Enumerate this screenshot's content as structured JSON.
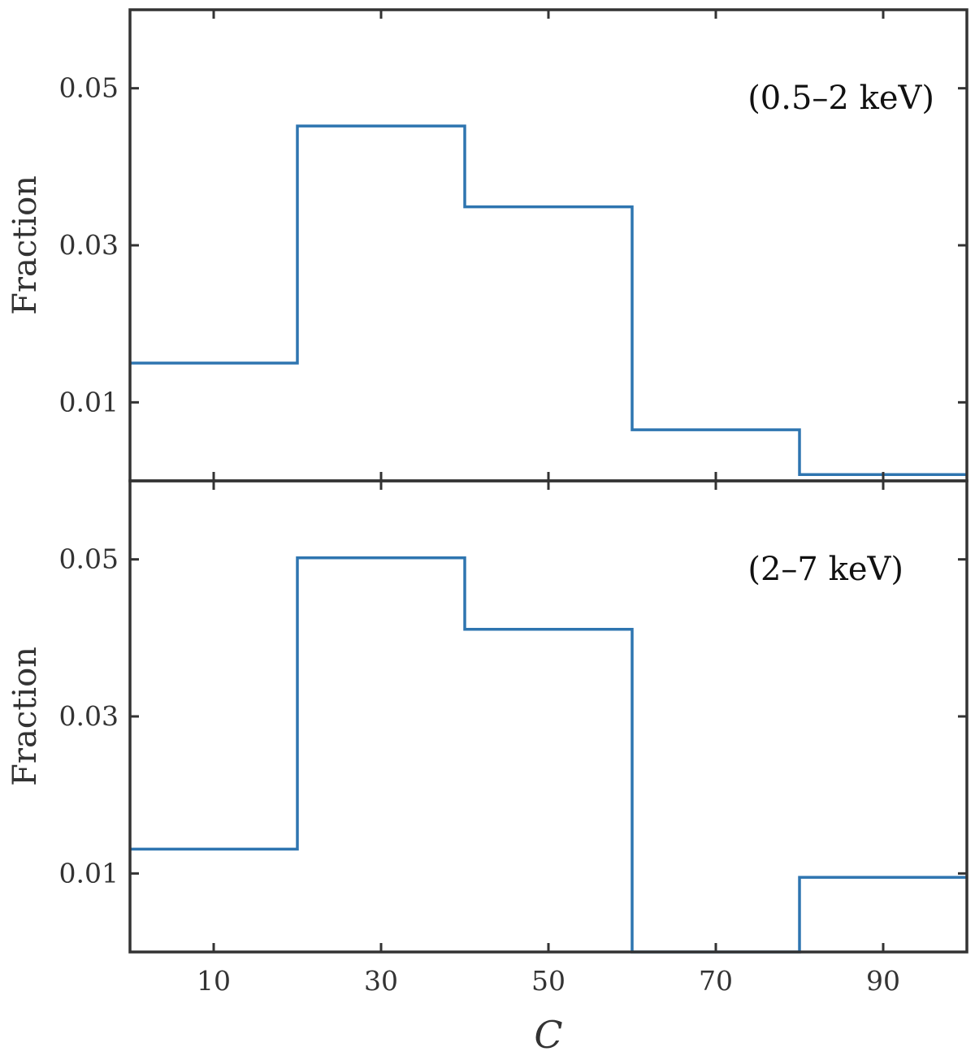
{
  "chart_data": [
    {
      "type": "histogram",
      "annotation": "(0.5–2 keV)",
      "ylabel": "Fraction",
      "xlabel": "",
      "xlim": [
        0,
        100
      ],
      "ylim": [
        0,
        0.06
      ],
      "yticks": [
        0.01,
        0.03,
        0.05
      ],
      "ytick_labels": [
        "0.01",
        "0.03",
        "0.05"
      ],
      "xticks": [
        10,
        30,
        50,
        70,
        90
      ],
      "xtick_labels": [],
      "bin_edges": [
        0,
        20,
        40,
        60,
        80,
        100
      ],
      "values": [
        0.015,
        0.0452,
        0.0349,
        0.0065,
        0.0008
      ],
      "color": "#2E75B0",
      "grid": false,
      "legend": false
    },
    {
      "type": "histogram",
      "annotation": "(2–7 keV)",
      "ylabel": "Fraction",
      "xlabel": "C",
      "xlim": [
        0,
        100
      ],
      "ylim": [
        0,
        0.06
      ],
      "yticks": [
        0.01,
        0.03,
        0.05
      ],
      "ytick_labels": [
        "0.01",
        "0.03",
        "0.05"
      ],
      "xticks": [
        10,
        30,
        50,
        70,
        90
      ],
      "xtick_labels": [
        "10",
        "30",
        "50",
        "70",
        "90"
      ],
      "bin_edges": [
        0,
        20,
        40,
        60,
        80,
        100
      ],
      "values": [
        0.0131,
        0.0502,
        0.0411,
        0.0,
        0.0095
      ],
      "color": "#2E75B0",
      "grid": false,
      "legend": false
    }
  ]
}
